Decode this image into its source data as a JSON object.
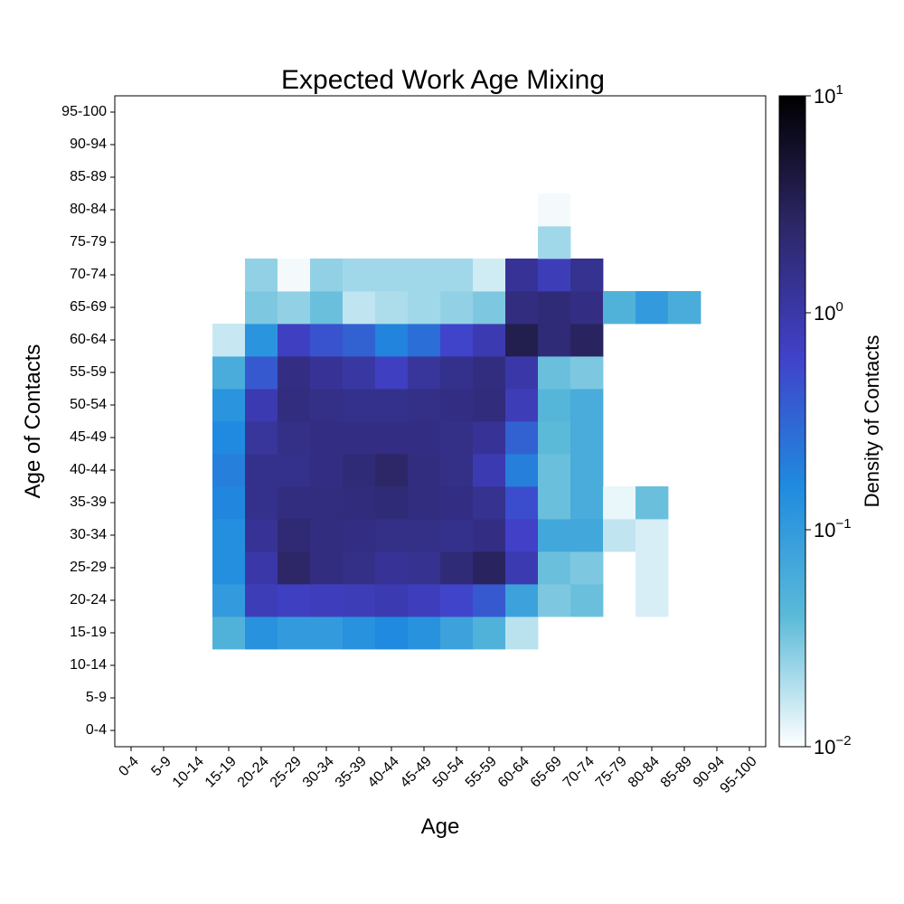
{
  "chart_data": {
    "type": "heatmap",
    "title": "Expected Work Age Mixing",
    "xlabel": "Age",
    "ylabel": "Age of Contacts",
    "categories": [
      "0-4",
      "5-9",
      "10-14",
      "15-19",
      "20-24",
      "25-29",
      "30-34",
      "35-39",
      "40-44",
      "45-49",
      "50-54",
      "55-59",
      "60-64",
      "65-69",
      "70-74",
      "75-79",
      "80-84",
      "85-89",
      "90-94",
      "95-100"
    ],
    "x": [
      "0-4",
      "5-9",
      "10-14",
      "15-19",
      "20-24",
      "25-29",
      "30-34",
      "35-39",
      "40-44",
      "45-49",
      "50-54",
      "55-59",
      "60-64",
      "65-69",
      "70-74",
      "75-79",
      "80-84",
      "85-89",
      "90-94",
      "95-100"
    ],
    "y": [
      "0-4",
      "5-9",
      "10-14",
      "15-19",
      "20-24",
      "25-29",
      "30-34",
      "35-39",
      "40-44",
      "45-49",
      "50-54",
      "55-59",
      "60-64",
      "65-69",
      "70-74",
      "75-79",
      "80-84",
      "85-89",
      "90-94",
      "95-100"
    ],
    "values": [
      [
        null,
        null,
        null,
        null,
        null,
        null,
        null,
        null,
        null,
        null,
        null,
        null,
        null,
        null,
        null,
        null,
        null,
        null,
        null,
        null
      ],
      [
        null,
        null,
        null,
        null,
        null,
        null,
        null,
        null,
        null,
        null,
        null,
        null,
        null,
        null,
        null,
        null,
        null,
        null,
        null,
        null
      ],
      [
        null,
        null,
        null,
        null,
        null,
        null,
        null,
        null,
        null,
        null,
        null,
        null,
        null,
        null,
        null,
        null,
        null,
        null,
        null,
        null
      ],
      [
        null,
        null,
        null,
        0.05,
        0.13,
        0.1,
        0.1,
        0.13,
        0.16,
        0.13,
        0.08,
        0.05,
        0.018,
        null,
        null,
        null,
        null,
        null,
        null,
        null
      ],
      [
        null,
        null,
        null,
        0.1,
        0.8,
        0.7,
        0.75,
        0.8,
        0.9,
        0.75,
        0.6,
        0.4,
        0.08,
        0.03,
        0.035,
        null,
        0.014,
        null,
        null,
        null
      ],
      [
        null,
        null,
        null,
        0.14,
        1.0,
        2.5,
        1.8,
        1.6,
        1.3,
        1.4,
        2.0,
        2.8,
        0.9,
        0.035,
        0.03,
        null,
        0.014,
        null,
        null,
        null
      ],
      [
        null,
        null,
        null,
        0.14,
        1.3,
        2.1,
        1.8,
        1.7,
        1.6,
        1.6,
        1.5,
        1.7,
        0.65,
        0.07,
        0.07,
        0.017,
        0.014,
        null,
        null,
        null
      ],
      [
        null,
        null,
        null,
        0.17,
        1.5,
        1.8,
        1.8,
        1.9,
        2.0,
        1.8,
        1.7,
        1.4,
        0.5,
        0.035,
        0.06,
        0.012,
        0.035,
        null,
        null,
        null
      ],
      [
        null,
        null,
        null,
        0.2,
        1.5,
        1.5,
        1.7,
        2.0,
        2.5,
        1.8,
        1.6,
        0.9,
        0.2,
        0.035,
        0.06,
        null,
        null,
        null,
        null,
        null
      ],
      [
        null,
        null,
        null,
        0.16,
        1.2,
        1.6,
        1.7,
        1.7,
        1.7,
        1.7,
        1.6,
        1.3,
        0.35,
        0.04,
        0.06,
        null,
        null,
        null,
        null,
        null
      ],
      [
        null,
        null,
        null,
        0.12,
        0.9,
        1.8,
        1.6,
        1.5,
        1.5,
        1.6,
        1.7,
        1.9,
        0.8,
        0.045,
        0.06,
        null,
        null,
        null,
        null,
        null
      ],
      [
        null,
        null,
        null,
        0.06,
        0.4,
        1.7,
        1.3,
        1.1,
        0.7,
        1.2,
        1.5,
        1.8,
        1.0,
        0.035,
        0.03,
        null,
        null,
        null,
        null,
        null
      ],
      [
        null,
        null,
        null,
        0.016,
        0.12,
        0.7,
        0.45,
        0.35,
        0.18,
        0.27,
        0.6,
        0.9,
        3.5,
        2.0,
        2.8,
        null,
        null,
        null,
        null,
        null
      ],
      [
        null,
        null,
        null,
        null,
        0.03,
        0.025,
        0.035,
        0.017,
        0.02,
        0.022,
        0.025,
        0.03,
        1.8,
        2.0,
        1.7,
        0.05,
        0.1,
        0.06,
        null,
        null
      ],
      [
        null,
        null,
        null,
        null,
        0.025,
        0.011,
        0.025,
        0.022,
        0.022,
        0.022,
        0.022,
        0.015,
        1.3,
        0.8,
        1.4,
        null,
        null,
        null,
        null,
        null
      ],
      [
        null,
        null,
        null,
        null,
        null,
        null,
        null,
        null,
        null,
        null,
        null,
        null,
        null,
        0.022,
        null,
        null,
        null,
        null,
        null,
        null
      ],
      [
        null,
        null,
        null,
        null,
        null,
        null,
        null,
        null,
        null,
        null,
        null,
        null,
        null,
        0.011,
        null,
        null,
        null,
        null,
        null,
        null
      ],
      [
        null,
        null,
        null,
        null,
        null,
        null,
        null,
        null,
        null,
        null,
        null,
        null,
        null,
        null,
        null,
        null,
        null,
        null,
        null,
        null
      ],
      [
        null,
        null,
        null,
        null,
        null,
        null,
        null,
        null,
        null,
        null,
        null,
        null,
        null,
        null,
        null,
        null,
        null,
        null,
        null,
        null
      ],
      [
        null,
        null,
        null,
        null,
        null,
        null,
        null,
        null,
        null,
        null,
        null,
        null,
        null,
        null,
        null,
        null,
        null,
        null,
        null,
        null
      ]
    ],
    "colorbar": {
      "label": "Density of Contacts",
      "scale": "log",
      "range": [
        0.01,
        10
      ],
      "ticks": [
        {
          "value": 10,
          "base": "10",
          "exp": "1"
        },
        {
          "value": 1,
          "base": "10",
          "exp": "0"
        },
        {
          "value": 0.1,
          "base": "10",
          "exp": "−1"
        },
        {
          "value": 0.01,
          "base": "10",
          "exp": "−2"
        }
      ],
      "color_stops": [
        "#ffffff",
        "#5bbad8",
        "#1f8bdf",
        "#4141c9",
        "#2d2767",
        "#000000"
      ]
    },
    "grid": false,
    "legend": "none"
  }
}
